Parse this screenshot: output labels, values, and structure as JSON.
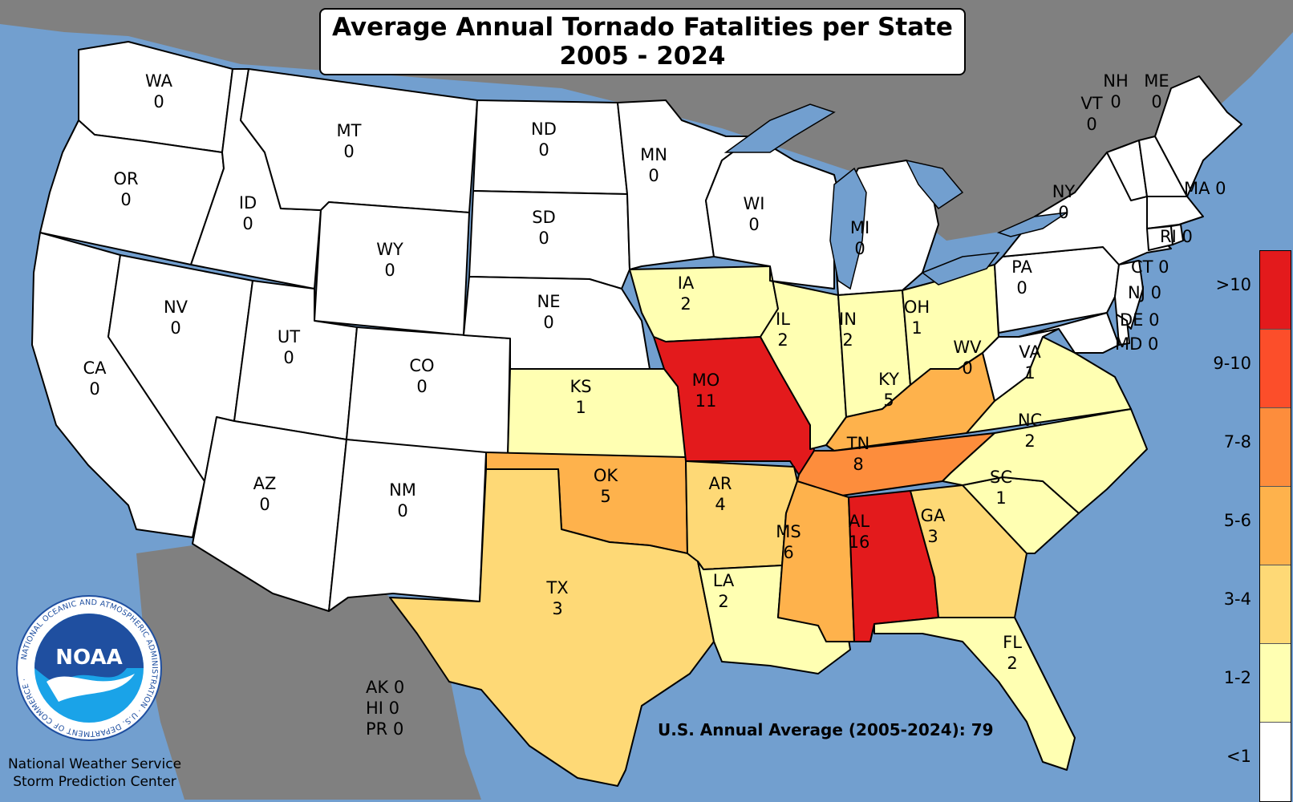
{
  "title": {
    "line1": "Average Annual Tornado Fatalities per State",
    "line2": "2005 - 2024"
  },
  "national_average": "U.S. Annual Average (2005-2024): 79",
  "territories": [
    {
      "abbr": "AK",
      "value": "0"
    },
    {
      "abbr": "HI",
      "value": "0"
    },
    {
      "abbr": "PR",
      "value": "0"
    }
  ],
  "credits": {
    "line1": "National Weather Service",
    "line2": "Storm Prediction Center"
  },
  "logo": {
    "name": "NOAA",
    "ring_text": "NATIONAL OCEANIC AND ATMOSPHERIC ADMINISTRATION · U.S. DEPARTMENT OF COMMERCE ·"
  },
  "legend": [
    {
      "label": ">10",
      "color": "#e31a1c"
    },
    {
      "label": "9-10",
      "color": "#fc4e2a"
    },
    {
      "label": "7-8",
      "color": "#fd8d3c"
    },
    {
      "label": "5-6",
      "color": "#feb24c"
    },
    {
      "label": "3-4",
      "color": "#fed976"
    },
    {
      "label": "1-2",
      "color": "#ffffb2"
    },
    {
      "label": "<1",
      "color": "#ffffff"
    }
  ],
  "colors": {
    "ocean": "#729fcf",
    "land_outside": "#808080",
    "lakes": "#729fcf"
  },
  "states": {
    "WA": {
      "abbr": "WA",
      "value": "0"
    },
    "OR": {
      "abbr": "OR",
      "value": "0"
    },
    "CA": {
      "abbr": "CA",
      "value": "0"
    },
    "ID": {
      "abbr": "ID",
      "value": "0"
    },
    "NV": {
      "abbr": "NV",
      "value": "0"
    },
    "MT": {
      "abbr": "MT",
      "value": "0"
    },
    "WY": {
      "abbr": "WY",
      "value": "0"
    },
    "UT": {
      "abbr": "UT",
      "value": "0"
    },
    "AZ": {
      "abbr": "AZ",
      "value": "0"
    },
    "CO": {
      "abbr": "CO",
      "value": "0"
    },
    "NM": {
      "abbr": "NM",
      "value": "0"
    },
    "ND": {
      "abbr": "ND",
      "value": "0"
    },
    "SD": {
      "abbr": "SD",
      "value": "0"
    },
    "NE": {
      "abbr": "NE",
      "value": "0"
    },
    "KS": {
      "abbr": "KS",
      "value": "1"
    },
    "OK": {
      "abbr": "OK",
      "value": "5"
    },
    "TX": {
      "abbr": "TX",
      "value": "3"
    },
    "MN": {
      "abbr": "MN",
      "value": "0"
    },
    "IA": {
      "abbr": "IA",
      "value": "2"
    },
    "MO": {
      "abbr": "MO",
      "value": "11"
    },
    "AR": {
      "abbr": "AR",
      "value": "4"
    },
    "LA": {
      "abbr": "LA",
      "value": "2"
    },
    "WI": {
      "abbr": "WI",
      "value": "0"
    },
    "IL": {
      "abbr": "IL",
      "value": "2"
    },
    "MI": {
      "abbr": "MI",
      "value": "0"
    },
    "IN": {
      "abbr": "IN",
      "value": "2"
    },
    "OH": {
      "abbr": "OH",
      "value": "1"
    },
    "KY": {
      "abbr": "KY",
      "value": "5"
    },
    "TN": {
      "abbr": "TN",
      "value": "8"
    },
    "MS": {
      "abbr": "MS",
      "value": "6"
    },
    "AL": {
      "abbr": "AL",
      "value": "16"
    },
    "GA": {
      "abbr": "GA",
      "value": "3"
    },
    "FL": {
      "abbr": "FL",
      "value": "2"
    },
    "SC": {
      "abbr": "SC",
      "value": "1"
    },
    "NC": {
      "abbr": "NC",
      "value": "2"
    },
    "VA": {
      "abbr": "VA",
      "value": "1"
    },
    "WV": {
      "abbr": "WV",
      "value": "0"
    },
    "PA": {
      "abbr": "PA",
      "value": "0"
    },
    "NY": {
      "abbr": "NY",
      "value": "0"
    },
    "VT": {
      "abbr": "VT",
      "value": "0"
    },
    "NH": {
      "abbr": "NH",
      "value": "0"
    },
    "ME": {
      "abbr": "ME",
      "value": "0"
    },
    "MA": {
      "abbr": "MA",
      "value": "0"
    },
    "RI": {
      "abbr": "RI",
      "value": "0"
    },
    "CT": {
      "abbr": "CT",
      "value": "0"
    },
    "NJ": {
      "abbr": "NJ",
      "value": "0"
    },
    "DE": {
      "abbr": "DE",
      "value": "0"
    },
    "MD": {
      "abbr": "MD",
      "value": "0"
    }
  }
}
